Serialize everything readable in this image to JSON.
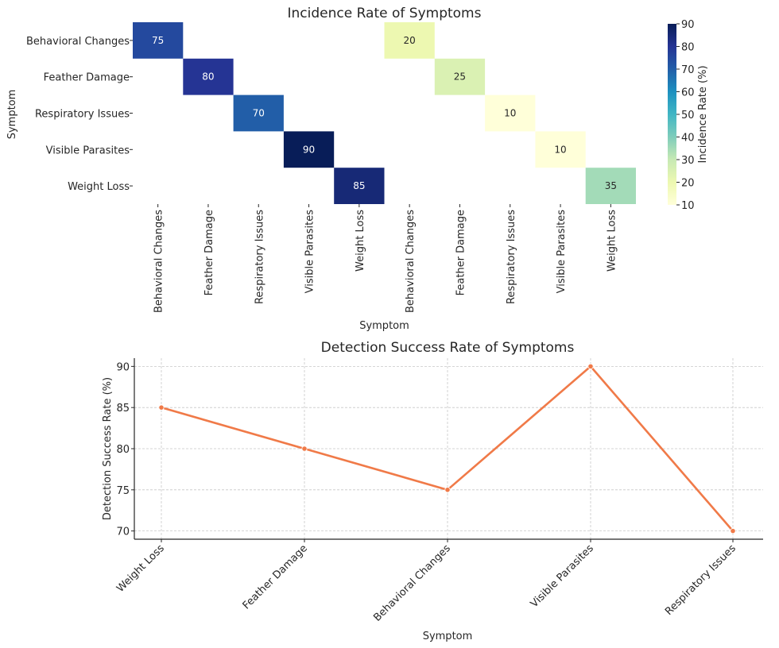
{
  "chart_data": [
    {
      "type": "heatmap",
      "title": "Incidence Rate of Symptoms",
      "xlabel": "Symptom",
      "ylabel": "Symptom",
      "rows": [
        "Behavioral Changes",
        "Feather Damage",
        "Respiratory Issues",
        "Visible Parasites",
        "Weight Loss"
      ],
      "columns": [
        "Behavioral Changes",
        "Feather Damage",
        "Respiratory Issues",
        "Visible Parasites",
        "Weight Loss",
        "Behavioral Changes",
        "Feather Damage",
        "Respiratory Issues",
        "Visible Parasites",
        "Weight Loss"
      ],
      "cells": [
        {
          "row": 0,
          "col": 0,
          "value": 75
        },
        {
          "row": 1,
          "col": 1,
          "value": 80
        },
        {
          "row": 2,
          "col": 2,
          "value": 70
        },
        {
          "row": 3,
          "col": 3,
          "value": 90
        },
        {
          "row": 4,
          "col": 4,
          "value": 85
        },
        {
          "row": 0,
          "col": 5,
          "value": 20
        },
        {
          "row": 1,
          "col": 6,
          "value": 25
        },
        {
          "row": 2,
          "col": 7,
          "value": 10
        },
        {
          "row": 3,
          "col": 8,
          "value": 10
        },
        {
          "row": 4,
          "col": 9,
          "value": 35
        }
      ],
      "colorbar": {
        "label": "Incidence Rate (%)",
        "min": 10,
        "max": 90,
        "ticks": [
          10,
          20,
          30,
          40,
          50,
          60,
          70,
          80,
          90
        ],
        "colormap": "YlGnBu"
      }
    },
    {
      "type": "line",
      "title": "Detection Success Rate of Symptoms",
      "xlabel": "Symptom",
      "ylabel": "Detection Success Rate (%)",
      "categories": [
        "Weight Loss",
        "Feather Damage",
        "Behavioral Changes",
        "Visible Parasites",
        "Respiratory Issues"
      ],
      "values": [
        85,
        80,
        75,
        90,
        70
      ],
      "ylim": [
        69,
        91
      ],
      "yticks": [
        70,
        75,
        80,
        85,
        90
      ],
      "grid": true,
      "color": "#f07a48"
    }
  ]
}
